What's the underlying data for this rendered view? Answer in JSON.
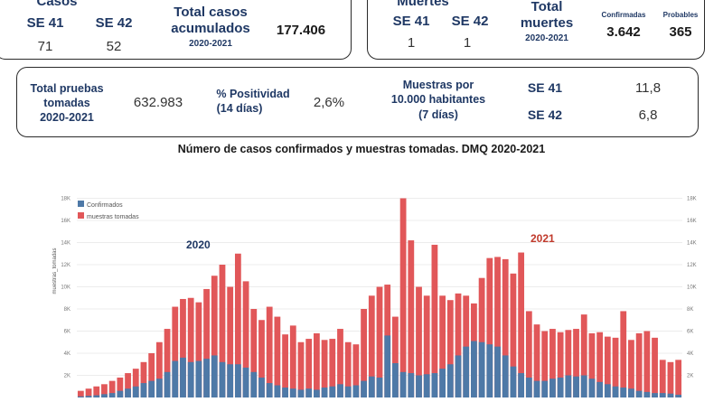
{
  "casos": {
    "title": "Casos",
    "se41_label": "SE 41",
    "se42_label": "SE 42",
    "se41_value": "71",
    "se42_value": "52",
    "total_label_1": "Total casos",
    "total_label_2": "acumulados",
    "total_period": "2020-2021",
    "total_value": "177.406"
  },
  "muertes": {
    "title": "Muertes",
    "se41_label": "SE 41",
    "se42_label": "SE 42",
    "se41_value": "1",
    "se42_value": "1",
    "total_label_1": "Total",
    "total_label_2": "muertes",
    "total_period": "2020-2021",
    "confirmadas_label": "Confirmadas",
    "confirmadas_value": "3.642",
    "probables_label": "Probables",
    "probables_value": "365"
  },
  "pruebas": {
    "total_label_1": "Total pruebas",
    "total_label_2": "tomadas",
    "total_period": "2020-2021",
    "total_value": "632.983",
    "positividad_label_1": "% Positividad",
    "positividad_label_2": "(14 días)",
    "positividad_value": "2,6%",
    "muestras_label_1": "Muestras por",
    "muestras_label_2": "10.000 habitantes",
    "muestras_label_3": "(7 días)",
    "se41_label": "SE 41",
    "se42_label": "SE 42",
    "se41_value": "11,8",
    "se42_value": "6,8"
  },
  "colors": {
    "confirmados": "#4e79a7",
    "muestras": "#e15759",
    "year2020": "#1f3864",
    "year2021": "#c0392b"
  },
  "chart_data": {
    "type": "bar",
    "title": "Número de casos confirmados y muestras tomadas. DMQ 2020-2021",
    "ylabel": "muestras_tomadas",
    "ylim": [
      0,
      18000
    ],
    "yticks": [
      "2K",
      "4K",
      "6K",
      "8K",
      "10K",
      "12K",
      "14K",
      "16K",
      "18K"
    ],
    "annotations": [
      "2020",
      "2021"
    ],
    "series": [
      {
        "name": "Confirmados",
        "values": [
          100,
          150,
          200,
          300,
          400,
          600,
          800,
          1000,
          1300,
          1500,
          1700,
          2300,
          3300,
          3600,
          3200,
          3300,
          3500,
          3800,
          3200,
          3000,
          3000,
          2700,
          2300,
          1800,
          1300,
          1100,
          900,
          800,
          700,
          800,
          700,
          900,
          1000,
          1200,
          1000,
          1100,
          1500,
          1900,
          1800,
          5600,
          3100,
          2300,
          2200,
          2000,
          2100,
          2200,
          2600,
          3000,
          3800,
          4600,
          5100,
          5000,
          4800,
          4600,
          3800,
          2800,
          2200,
          1800,
          1500,
          1500,
          1700,
          1800,
          2000,
          1900,
          2000,
          1700,
          1400,
          1200,
          1000,
          900,
          800,
          600,
          500,
          400,
          400,
          350,
          250
        ]
      },
      {
        "name": "muestras tomadas",
        "values": [
          600,
          800,
          1000,
          1200,
          1500,
          1800,
          2200,
          2600,
          3200,
          4000,
          5000,
          6200,
          8200,
          8900,
          9000,
          8600,
          9800,
          11000,
          12000,
          10000,
          13000,
          10500,
          8000,
          7000,
          8200,
          7300,
          5700,
          6500,
          5000,
          5300,
          5800,
          5200,
          5300,
          6200,
          5000,
          4800,
          8000,
          9200,
          10000,
          10200,
          7300,
          18000,
          14200,
          10000,
          9200,
          13800,
          9200,
          8800,
          9400,
          9200,
          8500,
          10800,
          12600,
          12700,
          12500,
          11200,
          13100,
          7800,
          6600,
          6000,
          6200,
          5900,
          6100,
          6200,
          7500,
          5800,
          5900,
          5500,
          5400,
          7800,
          5200,
          5800,
          6000,
          5400,
          3400,
          3200,
          3400
        ]
      }
    ]
  }
}
